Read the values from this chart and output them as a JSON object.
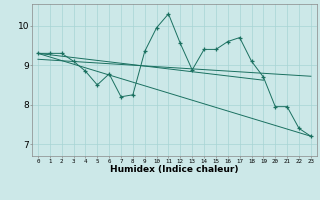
{
  "xlabel": "Humidex (Indice chaleur)",
  "bg_color": "#cce8e8",
  "line_color": "#1a7060",
  "x_ticks": [
    0,
    1,
    2,
    3,
    4,
    5,
    6,
    7,
    8,
    9,
    10,
    11,
    12,
    13,
    14,
    15,
    16,
    17,
    18,
    19,
    20,
    21,
    22,
    23
  ],
  "y_ticks": [
    7,
    8,
    9,
    10
  ],
  "xlim": [
    -0.5,
    23.5
  ],
  "ylim": [
    6.7,
    10.55
  ],
  "series1_x": [
    0,
    1,
    2,
    3,
    4,
    5,
    6,
    7,
    8,
    9,
    10,
    11,
    12,
    13,
    14,
    15,
    16,
    17,
    18,
    19,
    20,
    21,
    22,
    23
  ],
  "series1_y": [
    9.3,
    9.3,
    9.3,
    9.1,
    8.85,
    8.5,
    8.78,
    8.2,
    8.25,
    9.35,
    9.95,
    10.3,
    9.55,
    8.88,
    9.4,
    9.4,
    9.6,
    9.7,
    9.1,
    8.7,
    7.95,
    7.95,
    7.4,
    7.2
  ],
  "series2_x": [
    0,
    19
  ],
  "series2_y": [
    9.3,
    8.62
  ],
  "series3_x": [
    0,
    23
  ],
  "series3_y": [
    9.3,
    7.2
  ],
  "series4_x": [
    0,
    23
  ],
  "series4_y": [
    9.15,
    8.72
  ]
}
